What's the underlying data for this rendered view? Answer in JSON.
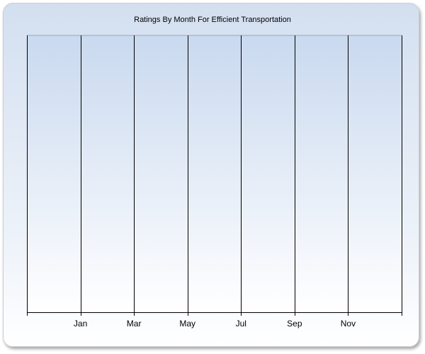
{
  "chart_data": {
    "type": "bar",
    "title": "Ratings By Month For Efficient Transportation",
    "categories": [
      "Jan",
      "Mar",
      "May",
      "Jul",
      "Sep",
      "Nov"
    ],
    "series": [],
    "xlabel": "",
    "ylabel": "",
    "grid": "vertical",
    "colors": {
      "plot_top": "#c9d9ef",
      "plot_bottom": "#ffffff",
      "frame_top": "#d3dff0"
    }
  }
}
